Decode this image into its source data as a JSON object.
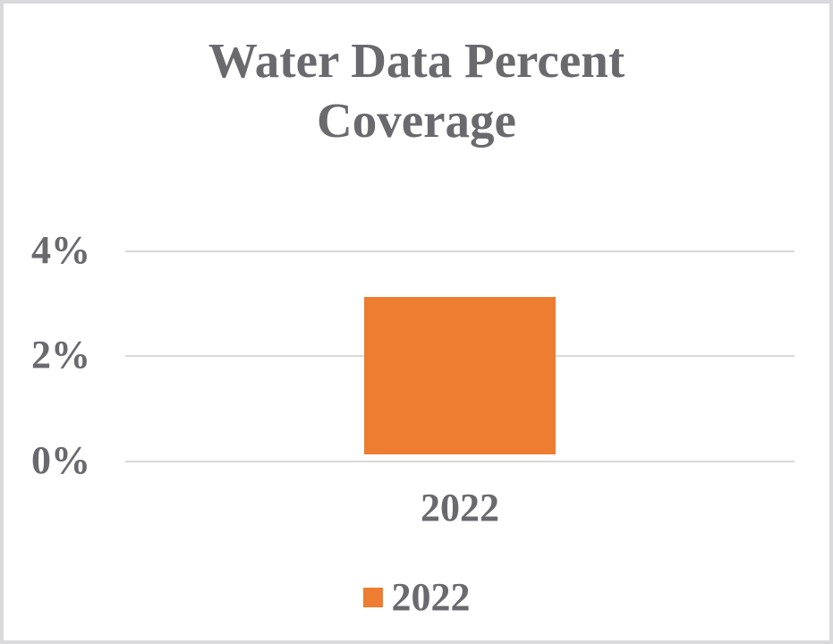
{
  "chart": {
    "title": "Water Data Percent Coverage",
    "title_lines": [
      "Water Data Percent",
      "Coverage"
    ],
    "y_axis": {
      "ticks": [
        "4%",
        "2%",
        "0%"
      ]
    },
    "x_axis": {
      "categories": [
        "2022"
      ]
    },
    "legend": [
      {
        "label": "2022",
        "color": "#ED7D31"
      }
    ]
  },
  "chart_data": {
    "type": "bar",
    "title": "Water Data Percent Coverage",
    "categories": [
      "2022"
    ],
    "series": [
      {
        "name": "2022",
        "values": [
          3
        ]
      }
    ],
    "xlabel": "",
    "ylabel": "",
    "ylim": [
      0,
      4
    ],
    "ytick_step": 2,
    "ytick_format": "percent",
    "grid": true,
    "legend_position": "bottom",
    "bar_color": "#ED7D31",
    "text_color": "#69696E",
    "gridline_color": "#D9D9D9",
    "frame_border_color": "#DADADD"
  }
}
